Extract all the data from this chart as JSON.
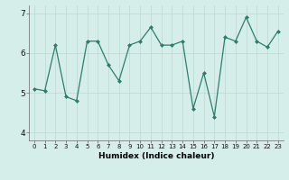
{
  "x": [
    0,
    1,
    2,
    3,
    4,
    5,
    6,
    7,
    8,
    9,
    10,
    11,
    12,
    13,
    14,
    15,
    16,
    17,
    18,
    19,
    20,
    21,
    22,
    23
  ],
  "y": [
    5.1,
    5.05,
    6.2,
    4.9,
    4.8,
    6.3,
    6.3,
    5.7,
    5.3,
    6.2,
    6.3,
    6.65,
    6.2,
    6.2,
    6.3,
    4.6,
    5.5,
    4.4,
    6.4,
    6.3,
    6.9,
    6.3,
    6.15,
    6.55
  ],
  "xlabel": "Humidex (Indice chaleur)",
  "ylim": [
    3.8,
    7.2
  ],
  "xlim": [
    -0.5,
    23.5
  ],
  "yticks": [
    4,
    5,
    6,
    7
  ],
  "xticks": [
    0,
    1,
    2,
    3,
    4,
    5,
    6,
    7,
    8,
    9,
    10,
    11,
    12,
    13,
    14,
    15,
    16,
    17,
    18,
    19,
    20,
    21,
    22,
    23
  ],
  "line_color": "#2e7d6e",
  "marker": "D",
  "marker_size": 2.0,
  "bg_color": "#d6eeea",
  "grid_color": "#b8d8d2",
  "xlabel_fontsize": 6.5,
  "tick_fontsize_x": 5.0,
  "tick_fontsize_y": 6.5
}
